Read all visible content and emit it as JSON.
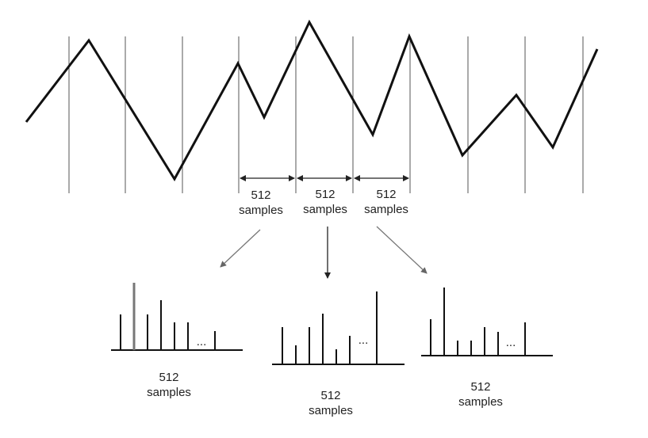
{
  "segment_labels": [
    {
      "line1": "512",
      "line2": "samples"
    },
    {
      "line1": "512",
      "line2": "samples"
    },
    {
      "line1": "512",
      "line2": "samples"
    }
  ],
  "spectra": [
    {
      "line1": "512",
      "line2": "samples",
      "ellipsis": "..."
    },
    {
      "line1": "512",
      "line2": "samples",
      "ellipsis": "..."
    },
    {
      "line1": "512",
      "line2": "samples",
      "ellipsis": "..."
    }
  ]
}
